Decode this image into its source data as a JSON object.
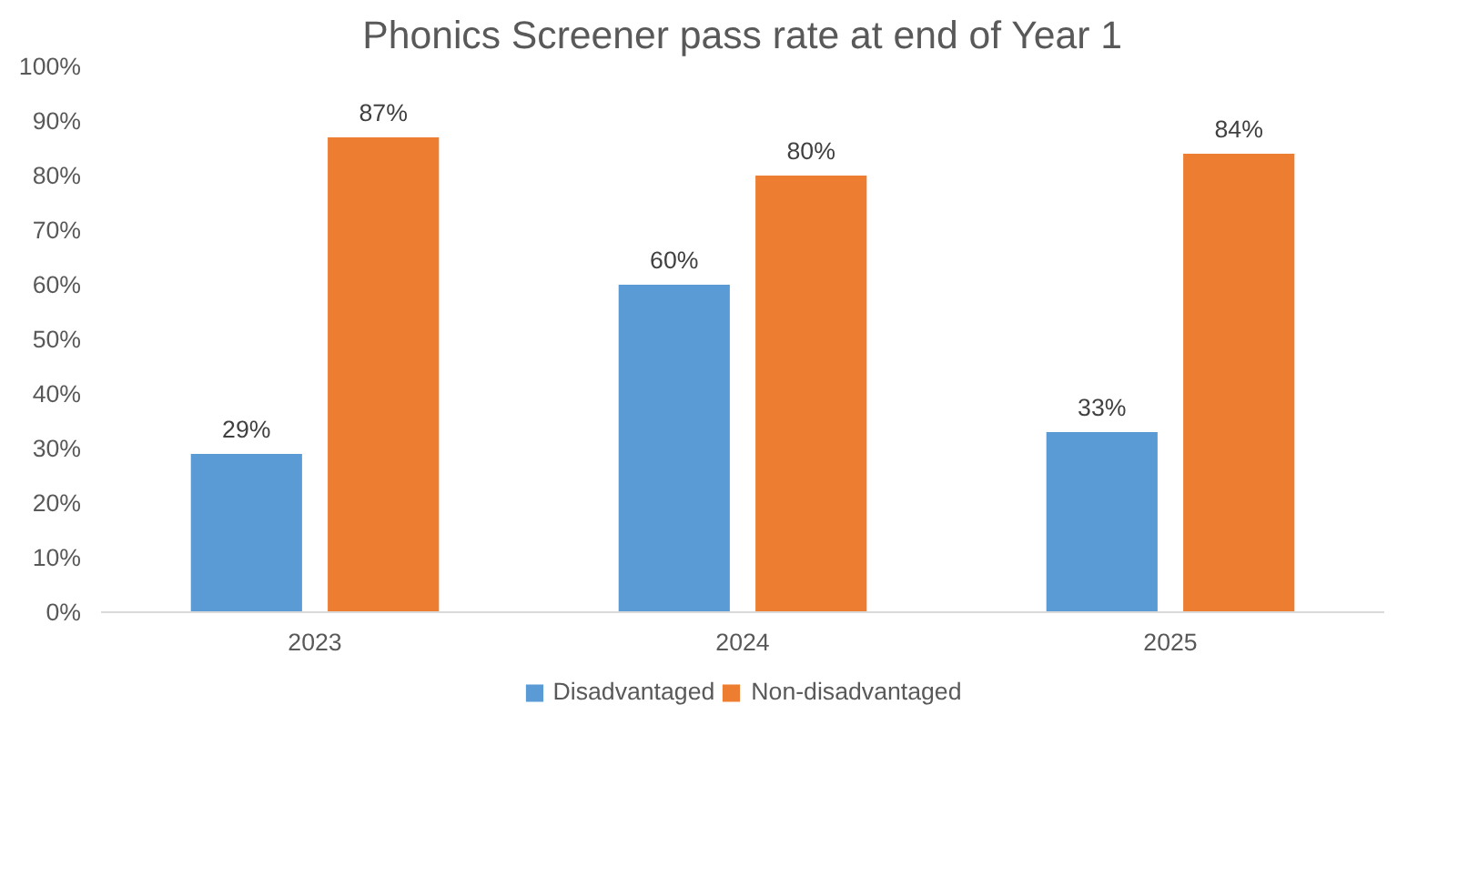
{
  "chart_data": {
    "type": "bar",
    "title": "Phonics Screener pass rate at end of Year 1",
    "categories": [
      "2023",
      "2024",
      "2025"
    ],
    "series": [
      {
        "name": "Disadvantaged",
        "color": "#5b9bd5",
        "values": [
          29,
          60,
          33
        ],
        "value_labels": [
          "29%",
          "60%",
          "33%"
        ]
      },
      {
        "name": "Non-disadvantaged",
        "color": "#ed7d31",
        "values": [
          87,
          80,
          84
        ],
        "value_labels": [
          "87%",
          "80%",
          "84%"
        ]
      }
    ],
    "ylim": [
      0,
      100
    ],
    "yticks": [
      {
        "value": 0,
        "label": "0%"
      },
      {
        "value": 10,
        "label": "10%"
      },
      {
        "value": 20,
        "label": "20%"
      },
      {
        "value": 30,
        "label": "30%"
      },
      {
        "value": 40,
        "label": "40%"
      },
      {
        "value": 50,
        "label": "50%"
      },
      {
        "value": 60,
        "label": "60%"
      },
      {
        "value": 70,
        "label": "70%"
      },
      {
        "value": 80,
        "label": "80%"
      },
      {
        "value": 90,
        "label": "90%"
      },
      {
        "value": 100,
        "label": "100%"
      }
    ],
    "grid": false,
    "legend": "bottom"
  }
}
